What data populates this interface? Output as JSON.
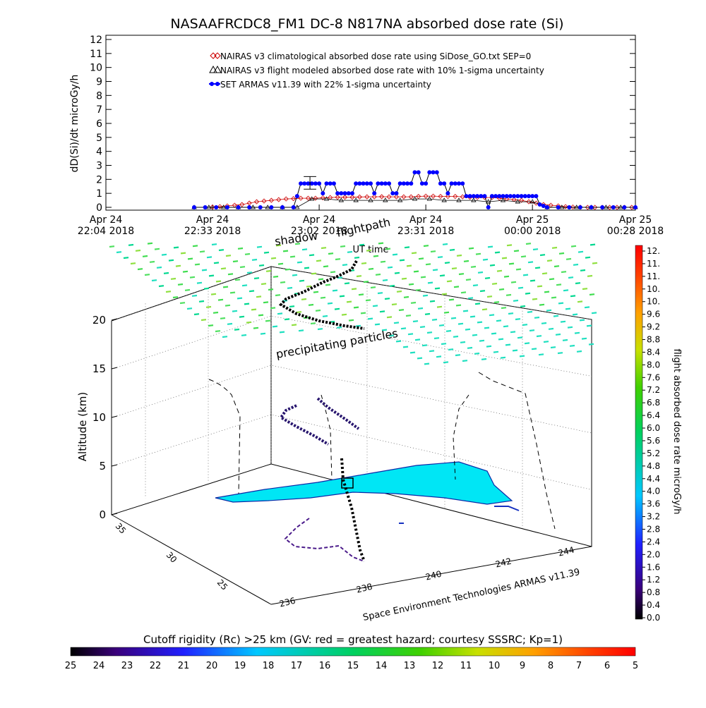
{
  "chart_data": [
    {
      "type": "line",
      "title": "NASAAFRCDC8_FM1 DC-8   N817NA absorbed dose rate (Si)",
      "ylabel": "dD(Si)/dt microGy/h",
      "xlabel": "UT time",
      "ylim": [
        0,
        12
      ],
      "yticks": [
        0,
        1,
        2,
        3,
        4,
        5,
        6,
        7,
        8,
        9,
        10,
        11,
        12
      ],
      "xlim": [
        "2018-04-24 22:04",
        "2018-04-25 00:28"
      ],
      "xticks": [
        {
          "x": 0,
          "l1": "Apr 24",
          "l2": "22:04 2018"
        },
        {
          "x": 29,
          "l1": "Apr 24",
          "l2": "22:33 2018"
        },
        {
          "x": 58,
          "l1": "Apr 24",
          "l2": "23:02 2018"
        },
        {
          "x": 87,
          "l1": "Apr 24",
          "l2": "23:31 2018"
        },
        {
          "x": 116,
          "l1": "Apr 25",
          "l2": "00:00 2018"
        },
        {
          "x": 144,
          "l1": "Apr 25",
          "l2": "00:28 2018"
        }
      ],
      "x_unit": "minutes after 22:04",
      "legend": [
        "NAIRAS v3 climatological absorbed dose rate using SiDose_GO.txt SEP=0",
        "NAIRAS v3 flight modeled absorbed dose rate with 10% 1-sigma uncertainty",
        "SET ARMAS v11.39 with 22% 1-sigma uncertainty"
      ],
      "legend_placement": "top-center",
      "series": [
        {
          "name": "NAIRAS v3 climatological absorbed dose rate using SiDose_GO.txt SEP=0",
          "color": "#cc0000",
          "marker": "diamond",
          "x": [
            29,
            31,
            33,
            35,
            37,
            39,
            41,
            43,
            45,
            47,
            49,
            51,
            53,
            55,
            57,
            59,
            61,
            63,
            65,
            67,
            69,
            71,
            73,
            75,
            77,
            79,
            81,
            83,
            85,
            87,
            89,
            91,
            93,
            95,
            97,
            99,
            101,
            103,
            105,
            107,
            109,
            111,
            113,
            115,
            117,
            119,
            121,
            123,
            125,
            127,
            129,
            131,
            133,
            135,
            137,
            139,
            141,
            143
          ],
          "values": [
            0.02,
            0.05,
            0.1,
            0.15,
            0.2,
            0.3,
            0.4,
            0.45,
            0.5,
            0.55,
            0.6,
            0.62,
            0.65,
            0.65,
            0.65,
            0.68,
            0.7,
            0.72,
            0.72,
            0.72,
            0.74,
            0.75,
            0.75,
            0.76,
            0.75,
            0.75,
            0.75,
            0.75,
            0.78,
            0.8,
            0.8,
            0.78,
            0.78,
            0.78,
            0.75,
            0.72,
            0.7,
            0.7,
            0.7,
            0.65,
            0.6,
            0.55,
            0.5,
            0.4,
            0.3,
            0.2,
            0.15,
            0.1,
            0.05,
            0.02,
            0.01,
            0,
            0,
            0,
            0,
            0,
            0,
            0
          ]
        },
        {
          "name": "NAIRAS v3 flight modeled absorbed dose rate with 10% 1-sigma uncertainty",
          "color": "#000000",
          "marker": "triangle",
          "x": [
            24,
            28,
            32,
            36,
            40,
            44,
            48,
            52,
            56,
            60,
            64,
            68,
            72,
            76,
            80,
            84,
            88,
            92,
            96,
            100,
            104,
            108,
            112,
            116,
            120,
            124,
            128,
            132,
            136,
            140,
            144
          ],
          "values": [
            0,
            0,
            0,
            0,
            0,
            0,
            0,
            0,
            0.6,
            0.6,
            0.5,
            0.5,
            0.5,
            0.5,
            0.5,
            0.6,
            0.6,
            0.5,
            0.5,
            0.5,
            0.4,
            0.5,
            0.4,
            0.4,
            0,
            0,
            0,
            0,
            0,
            0,
            0
          ]
        },
        {
          "name": "SET ARMAS v11.39 with 22% 1-sigma uncertainty",
          "color": "#0000ff",
          "marker": "circle",
          "x": [
            24,
            27,
            30,
            33,
            36,
            39,
            42,
            45,
            48,
            51,
            52,
            53,
            54,
            55,
            56,
            57,
            58,
            59,
            60,
            61,
            62,
            63,
            64,
            65,
            66,
            67,
            68,
            69,
            70,
            71,
            72,
            73,
            74,
            75,
            76,
            77,
            78,
            79,
            80,
            81,
            82,
            83,
            84,
            85,
            86,
            87,
            88,
            89,
            90,
            91,
            92,
            93,
            94,
            95,
            96,
            97,
            98,
            99,
            100,
            101,
            102,
            103,
            104,
            105,
            106,
            107,
            108,
            109,
            110,
            111,
            112,
            113,
            114,
            115,
            116,
            117,
            118,
            119,
            120,
            123,
            126,
            129,
            132,
            135,
            138,
            141,
            144
          ],
          "values": [
            0,
            0,
            0,
            0,
            0,
            0,
            0,
            0,
            0,
            0,
            0.8,
            1.7,
            1.7,
            1.7,
            1.7,
            1.7,
            1.7,
            1.0,
            1.7,
            1.7,
            1.7,
            1.0,
            1.0,
            1.0,
            1.0,
            1.0,
            1.7,
            1.7,
            1.7,
            1.7,
            1.7,
            1.0,
            1.7,
            1.7,
            1.7,
            1.7,
            1.0,
            1.0,
            1.7,
            1.7,
            1.7,
            1.7,
            2.5,
            2.5,
            1.7,
            1.7,
            2.5,
            2.5,
            2.5,
            1.7,
            1.7,
            1.0,
            1.7,
            1.7,
            1.7,
            1.7,
            0.8,
            0.8,
            0.8,
            0.8,
            0.8,
            0.8,
            0,
            0.8,
            0.8,
            0.8,
            0.8,
            0.8,
            0.8,
            0.8,
            0.8,
            0.8,
            0.8,
            0.8,
            0.8,
            0.8,
            0.2,
            0.1,
            0,
            0,
            0,
            0,
            0,
            0,
            0,
            0,
            0
          ]
        }
      ]
    },
    {
      "type": "scatter",
      "annotations": [
        "shadow",
        "flightpath",
        "precipitating particles"
      ],
      "zlabel": "Altitude (km)",
      "zticks": [
        "0",
        "5",
        "10",
        "15",
        "20"
      ],
      "xaxis_ticks": [
        "236",
        "238",
        "240",
        "242",
        "244"
      ],
      "yaxis_ticks": [
        "25",
        "30",
        "35"
      ],
      "axis_caption": "Space Environment Technologies ARMAS v11.39",
      "shadow_color": "#00e6f5"
    },
    {
      "type": "heatmap",
      "role": "colorbar",
      "label": "flight absorbed dose rate microGy/h",
      "orientation": "vertical",
      "ticks": [
        "12.",
        "11.",
        "11.",
        "10.",
        "10.",
        "9.6",
        "9.2",
        "8.8",
        "8.4",
        "8.0",
        "7.6",
        "7.2",
        "6.8",
        "6.4",
        "6.0",
        "5.6",
        "5.2",
        "4.8",
        "4.4",
        "4.0",
        "3.6",
        "3.2",
        "2.8",
        "2.4",
        "2.0",
        "1.6",
        "1.2",
        "0.8",
        "0.4",
        "0.0"
      ]
    },
    {
      "type": "heatmap",
      "role": "colorbar",
      "label": "Cutoff rigidity (Rc) >25 km (GV: red = greatest hazard; courtesy SSSRC; Kp=1)",
      "orientation": "horizontal",
      "ticks": [
        "25",
        "24",
        "23",
        "22",
        "21",
        "20",
        "19",
        "18",
        "17",
        "16",
        "15",
        "14",
        "13",
        "12",
        "11",
        "10",
        "9",
        "8",
        "7",
        "6",
        "5"
      ]
    }
  ]
}
